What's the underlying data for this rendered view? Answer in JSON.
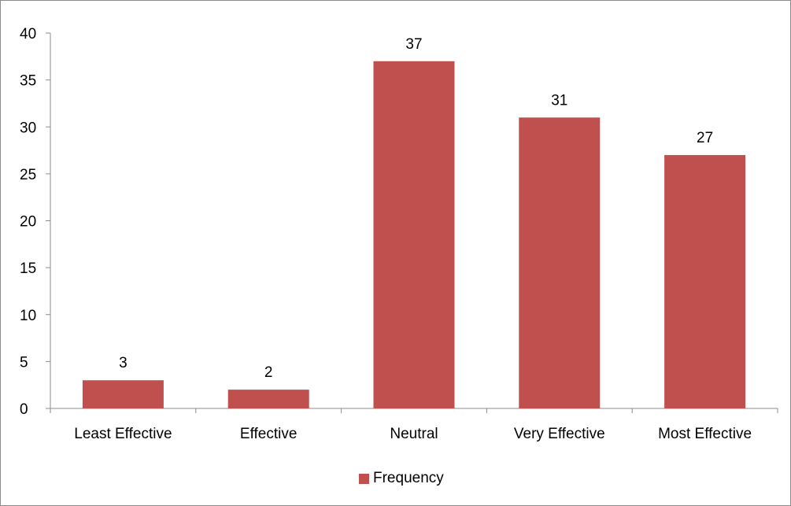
{
  "chart_data": {
    "type": "bar",
    "categories": [
      "Least Effective",
      "Effective",
      "Neutral",
      "Very Effective",
      "Most Effective"
    ],
    "series": [
      {
        "name": "Frequency",
        "values": [
          3,
          2,
          37,
          31,
          27
        ],
        "color": "#c0504d"
      }
    ],
    "data_labels": [
      "3",
      "2",
      "37",
      "31",
      "27"
    ],
    "y_ticks": [
      0,
      5,
      10,
      15,
      20,
      25,
      30,
      35,
      40
    ],
    "ylim": [
      0,
      40
    ],
    "grid": false,
    "legend_position": "bottom"
  }
}
